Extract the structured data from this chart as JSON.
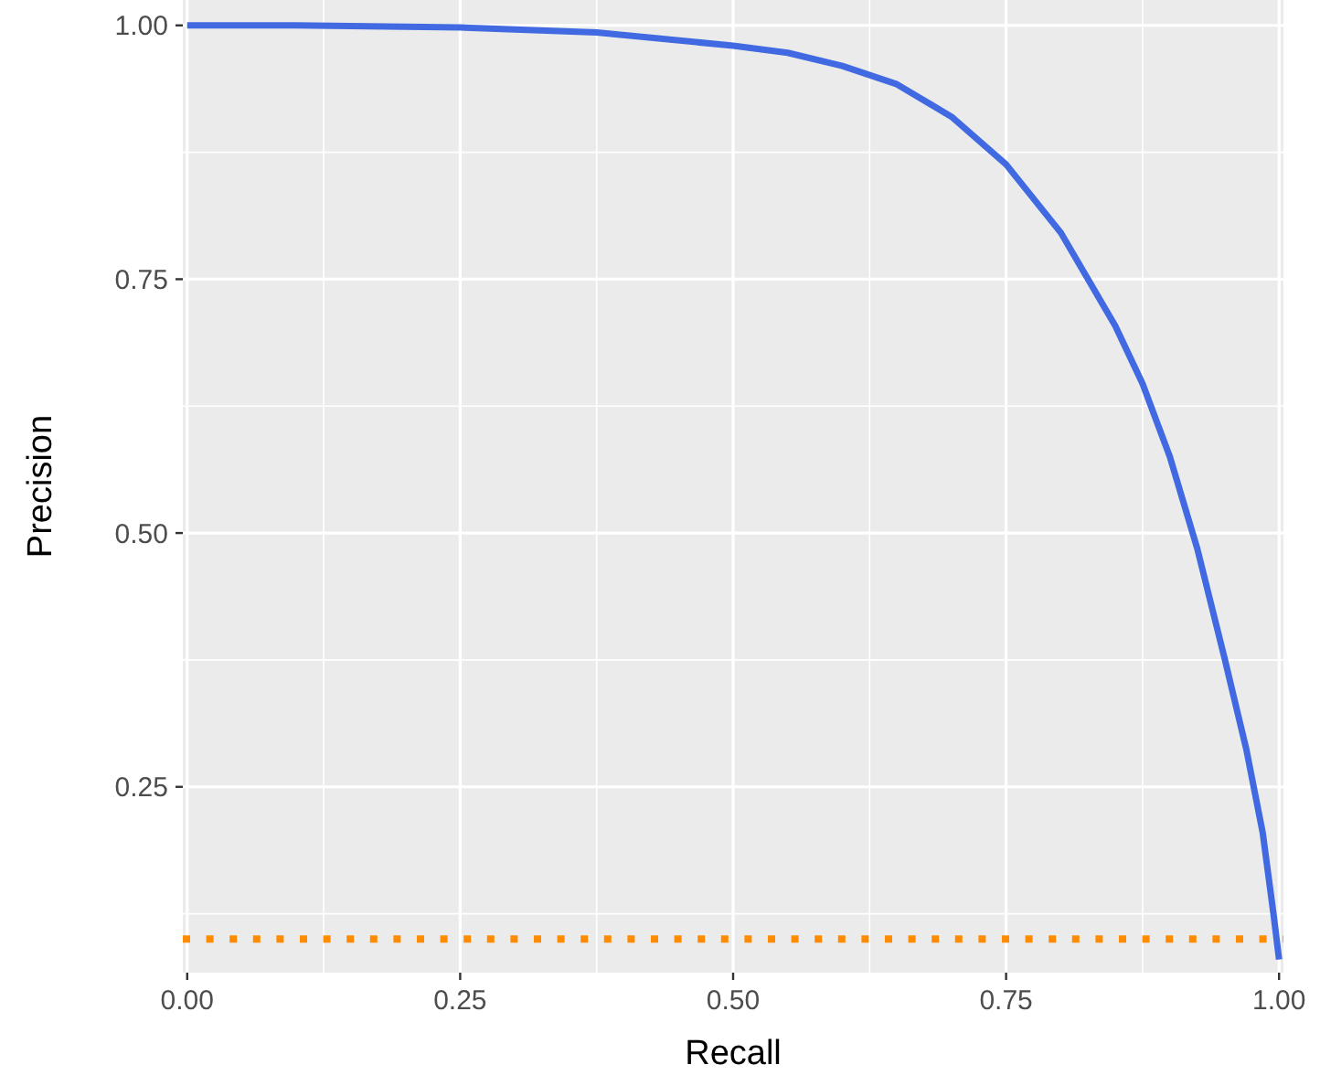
{
  "chart_data": {
    "type": "line",
    "xlabel": "Recall",
    "ylabel": "Precision",
    "x": [
      0,
      0.1,
      0.25,
      0.375,
      0.5,
      0.55,
      0.6,
      0.65,
      0.7,
      0.75,
      0.8,
      0.85,
      0.875,
      0.9,
      0.925,
      0.95,
      0.97,
      0.985,
      0.995,
      1.0
    ],
    "series": [
      {
        "color": "#4169e1",
        "values": [
          1.0,
          1.0,
          0.998,
          0.993,
          0.98,
          0.973,
          0.96,
          0.942,
          0.91,
          0.863,
          0.796,
          0.704,
          0.647,
          0.575,
          0.485,
          0.377,
          0.287,
          0.205,
          0.124,
          0.08
        ]
      }
    ],
    "xlim": [
      -0.004,
      1.004
    ],
    "ylim": [
      0.067,
      1.025
    ],
    "xticks": [
      {
        "value": 0,
        "label": "0.00"
      },
      {
        "value": 0.25,
        "label": "0.25"
      },
      {
        "value": 0.5,
        "label": "0.50"
      },
      {
        "value": 0.75,
        "label": "0.75"
      },
      {
        "value": 1,
        "label": "1.00"
      }
    ],
    "yticks": [
      {
        "value": 0.25,
        "label": "0.25"
      },
      {
        "value": 0.5,
        "label": "0.50"
      },
      {
        "value": 0.75,
        "label": "0.75"
      },
      {
        "value": 1,
        "label": "1.00"
      }
    ],
    "ref_lines": [
      {
        "axis": "y",
        "value": 0.1,
        "color": "#ff8c00",
        "line_style": "dotted"
      }
    ],
    "grid": true,
    "marker": "none",
    "line_style": "solid"
  }
}
